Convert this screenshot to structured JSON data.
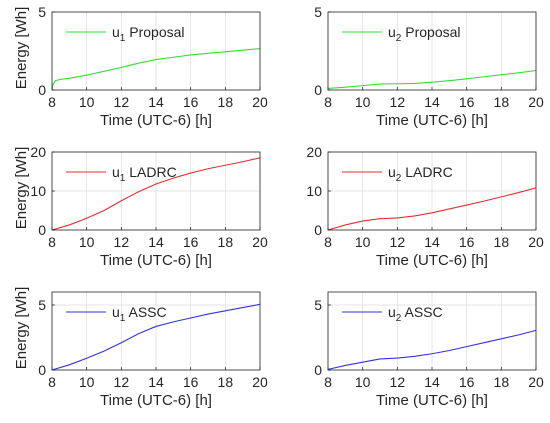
{
  "figure": {
    "xlabel": "Time (UTC-6) [h]",
    "ylabel": "Energy [Wh]"
  },
  "chart_data": [
    {
      "type": "line",
      "xlabel": "Time (UTC-6) [h]",
      "ylabel": "Energy [Wh]",
      "xlim": [
        8,
        20
      ],
      "ylim": [
        0,
        5
      ],
      "yticks": [
        0,
        5
      ],
      "xticks": [
        8,
        10,
        12,
        14,
        16,
        18,
        20
      ],
      "grid": true,
      "legend": "top-left",
      "series": [
        {
          "name": "u1 Proposal",
          "legend_base": "u",
          "legend_sub": "1",
          "legend_suffix": "Proposal",
          "color": "#33dd33",
          "x": [
            8,
            8.05,
            8.2,
            8.5,
            9,
            10,
            11,
            12,
            13,
            14,
            15,
            16,
            17,
            18,
            19,
            20
          ],
          "y": [
            0,
            0.35,
            0.6,
            0.68,
            0.75,
            0.95,
            1.2,
            1.45,
            1.72,
            1.95,
            2.1,
            2.25,
            2.35,
            2.45,
            2.55,
            2.65
          ]
        }
      ]
    },
    {
      "type": "line",
      "xlabel": "Time (UTC-6) [h]",
      "ylabel": "",
      "xlim": [
        8,
        20
      ],
      "ylim": [
        0,
        5
      ],
      "yticks": [
        0,
        5
      ],
      "xticks": [
        8,
        10,
        12,
        14,
        16,
        18,
        20
      ],
      "grid": true,
      "legend": "top-left",
      "series": [
        {
          "name": "u2 Proposal",
          "legend_base": "u",
          "legend_sub": "2",
          "legend_suffix": "Proposal",
          "color": "#33dd33",
          "x": [
            8,
            9,
            10,
            11,
            12,
            13,
            14,
            15,
            16,
            17,
            18,
            19,
            20
          ],
          "y": [
            0.1,
            0.18,
            0.28,
            0.38,
            0.4,
            0.42,
            0.5,
            0.6,
            0.72,
            0.85,
            0.98,
            1.1,
            1.25
          ]
        }
      ]
    },
    {
      "type": "line",
      "xlabel": "Time (UTC-6) [h]",
      "ylabel": "Energy [Wh]",
      "xlim": [
        8,
        20
      ],
      "ylim": [
        0,
        20
      ],
      "yticks": [
        0,
        10,
        20
      ],
      "xticks": [
        8,
        10,
        12,
        14,
        16,
        18,
        20
      ],
      "grid": true,
      "legend": "top-left",
      "series": [
        {
          "name": "u1 LADRC",
          "legend_base": "u",
          "legend_sub": "1",
          "legend_suffix": "LADRC",
          "color": "#e03030",
          "x": [
            8,
            9,
            10,
            11,
            12,
            13,
            14,
            15,
            16,
            17,
            18,
            19,
            20
          ],
          "y": [
            0,
            1.3,
            3.0,
            5.0,
            7.5,
            9.8,
            11.8,
            13.3,
            14.6,
            15.7,
            16.6,
            17.5,
            18.5
          ]
        }
      ]
    },
    {
      "type": "line",
      "xlabel": "Time (UTC-6) [h]",
      "ylabel": "",
      "xlim": [
        8,
        20
      ],
      "ylim": [
        0,
        20
      ],
      "yticks": [
        0,
        10,
        20
      ],
      "xticks": [
        8,
        10,
        12,
        14,
        16,
        18,
        20
      ],
      "grid": true,
      "legend": "top-left",
      "series": [
        {
          "name": "u2 LADRC",
          "legend_base": "u",
          "legend_sub": "2",
          "legend_suffix": "LADRC",
          "color": "#e03030",
          "x": [
            8,
            9,
            10,
            11,
            12,
            13,
            14,
            15,
            16,
            17,
            18,
            19,
            20
          ],
          "y": [
            0,
            1.3,
            2.3,
            2.9,
            3.1,
            3.6,
            4.4,
            5.4,
            6.4,
            7.4,
            8.5,
            9.6,
            10.8
          ]
        }
      ]
    },
    {
      "type": "line",
      "xlabel": "Time (UTC-6) [h]",
      "ylabel": "Energy [Wh]",
      "xlim": [
        8,
        20
      ],
      "ylim": [
        0,
        6
      ],
      "yticks": [
        0,
        5
      ],
      "xticks": [
        8,
        10,
        12,
        14,
        16,
        18,
        20
      ],
      "grid": true,
      "legend": "top-left",
      "series": [
        {
          "name": "u1 ASSC",
          "legend_base": "u",
          "legend_sub": "1",
          "legend_suffix": "ASSC",
          "color": "#3333dd",
          "x": [
            8,
            9,
            10,
            11,
            12,
            13,
            14,
            15,
            16,
            17,
            18,
            19,
            20
          ],
          "y": [
            0,
            0.4,
            0.9,
            1.45,
            2.1,
            2.8,
            3.35,
            3.7,
            4.0,
            4.3,
            4.55,
            4.8,
            5.05
          ]
        }
      ]
    },
    {
      "type": "line",
      "xlabel": "Time (UTC-6) [h]",
      "ylabel": "",
      "xlim": [
        8,
        20
      ],
      "ylim": [
        0,
        6
      ],
      "yticks": [
        0,
        5
      ],
      "xticks": [
        8,
        10,
        12,
        14,
        16,
        18,
        20
      ],
      "grid": true,
      "legend": "top-left",
      "series": [
        {
          "name": "u2 ASSC",
          "legend_base": "u",
          "legend_sub": "2",
          "legend_suffix": "ASSC",
          "color": "#3333dd",
          "x": [
            8,
            9,
            10,
            11,
            12,
            13,
            14,
            15,
            16,
            17,
            18,
            19,
            20
          ],
          "y": [
            0.05,
            0.35,
            0.6,
            0.85,
            0.92,
            1.05,
            1.25,
            1.5,
            1.8,
            2.1,
            2.4,
            2.7,
            3.05
          ]
        }
      ]
    }
  ]
}
